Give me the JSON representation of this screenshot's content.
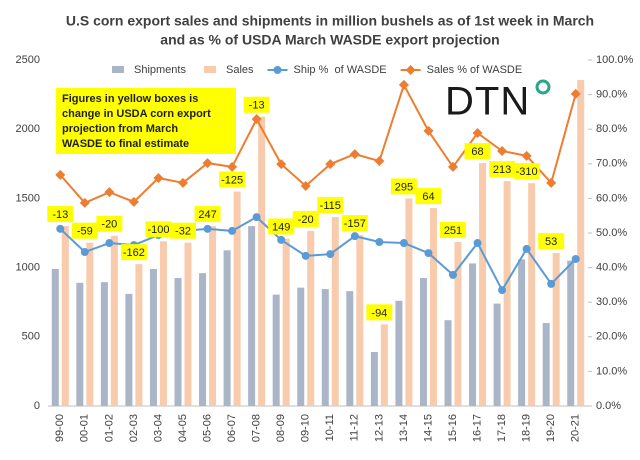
{
  "chart_data": {
    "type": "bar",
    "title": [
      "U.S corn export sales and shipments in million bushels as of 1st week in March",
      "and as % of USDA March WASDE export projection"
    ],
    "annotation": [
      "Figures in yellow boxes is",
      "change in USDA corn export",
      "projection from March",
      "WASDE to final estimate"
    ],
    "logo": "DTN",
    "categories": [
      "99-00",
      "00-01",
      "01-02",
      "02-03",
      "03-04",
      "04-05",
      "05-06",
      "06-07",
      "07-08",
      "08-09",
      "09-10",
      "10-11",
      "11-12",
      "12-13",
      "13-14",
      "14-15",
      "15-16",
      "16-17",
      "17-18",
      "18-19",
      "19-20",
      "20-21"
    ],
    "series": [
      {
        "name": "Shipments",
        "type": "bar",
        "color": "#aab5c8",
        "values": [
          990,
          890,
          895,
          810,
          990,
          925,
          960,
          1125,
          1300,
          805,
          855,
          845,
          830,
          390,
          760,
          925,
          620,
          1030,
          740,
          1060,
          600,
          1050
        ]
      },
      {
        "name": "Sales",
        "type": "bar",
        "color": "#f8cbad",
        "values": [
          1300,
          1180,
          1230,
          1025,
          1190,
          1180,
          1300,
          1550,
          2090,
          1210,
          1265,
          1365,
          1235,
          590,
          1500,
          1430,
          1185,
          1755,
          1625,
          1610,
          1105,
          2355
        ]
      },
      {
        "name": "Ship %  of WASDE",
        "type": "line",
        "axis": "y2",
        "color": "#5b9bd5",
        "marker": "circle",
        "values": [
          51.2,
          44.5,
          47.1,
          46.5,
          49.4,
          50.6,
          51.2,
          50.6,
          54.6,
          48,
          43.4,
          43.9,
          49.1,
          47.4,
          47.1,
          44.2,
          37.9,
          47.1,
          33.5,
          45.4,
          35.3,
          42.5
        ]
      },
      {
        "name": "Sales % of WASDE",
        "type": "line",
        "axis": "y2",
        "color": "#ed7d31",
        "marker": "diamond",
        "values": [
          66.8,
          58.7,
          61.8,
          59,
          65.9,
          64.5,
          70.2,
          69.1,
          82.9,
          69.9,
          63.6,
          69.9,
          72.8,
          70.8,
          92.8,
          79.5,
          69.1,
          78.9,
          73.7,
          72.3,
          64.5,
          90.2
        ]
      }
    ],
    "revisions": [
      -13,
      -59,
      -20,
      -162,
      -100,
      -32,
      247,
      -125,
      -13,
      149,
      -20,
      -115,
      -157,
      -94,
      295,
      64,
      251,
      68,
      213,
      -310,
      53,
      null
    ],
    "ylim": [
      0,
      2500
    ],
    "yticks": [
      0,
      500,
      1000,
      1500,
      2000,
      2500
    ],
    "y2lim": [
      0,
      100
    ],
    "y2ticks": [
      {
        "value": 0,
        "label": "0.0%"
      },
      {
        "value": 10,
        "label": "10.0%"
      },
      {
        "value": 20,
        "label": "20.0%"
      },
      {
        "value": 30,
        "label": "30.0%"
      },
      {
        "value": 40,
        "label": "40.0%"
      },
      {
        "value": 50,
        "label": "50.0%"
      },
      {
        "value": 60,
        "label": "60.0%"
      },
      {
        "value": 70,
        "label": "70.0%"
      },
      {
        "value": 80,
        "label": "80.0%"
      },
      {
        "value": 90,
        "label": "90.0%"
      },
      {
        "value": 100,
        "label": "100.0%"
      }
    ],
    "legend": "top"
  }
}
